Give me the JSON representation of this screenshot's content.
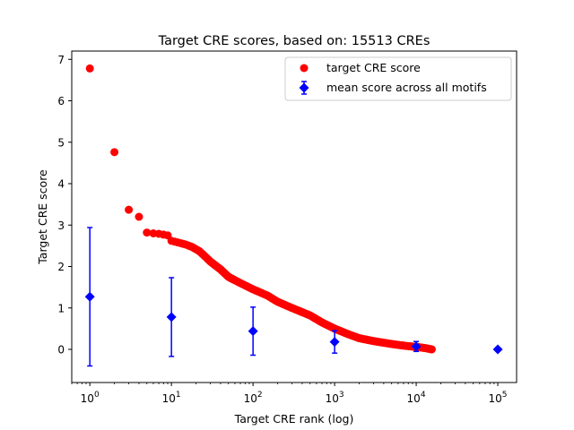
{
  "chart_data": {
    "type": "scatter",
    "title": "Target CRE scores, based on: 15513 CREs",
    "xlabel": "Target CRE rank (log)",
    "ylabel": "Target CRE score",
    "xscale": "log",
    "xlim": [
      0.6,
      170000
    ],
    "ylim": [
      -0.8,
      7.2
    ],
    "x_ticks": [
      {
        "value": 1,
        "base": "10",
        "exp": "0"
      },
      {
        "value": 10,
        "base": "10",
        "exp": "1"
      },
      {
        "value": 100,
        "base": "10",
        "exp": "2"
      },
      {
        "value": 1000,
        "base": "10",
        "exp": "3"
      },
      {
        "value": 10000,
        "base": "10",
        "exp": "4"
      },
      {
        "value": 100000,
        "base": "10",
        "exp": "5"
      }
    ],
    "y_ticks": [
      0,
      1,
      2,
      3,
      4,
      5,
      6,
      7
    ],
    "grid": false,
    "legend_position": "top-right",
    "legend": [
      {
        "label": "target CRE score",
        "marker": "circle",
        "color": "#ff0000"
      },
      {
        "label": "mean score across all motifs",
        "marker": "diamond",
        "color": "#0000ff"
      }
    ],
    "series": [
      {
        "name": "target CRE score",
        "color": "#ff0000",
        "marker": "circle",
        "curve": [
          [
            1,
            6.78
          ],
          [
            2,
            4.76
          ],
          [
            3,
            3.37
          ],
          [
            4,
            3.2
          ],
          [
            5,
            2.82
          ],
          [
            6,
            2.8
          ],
          [
            7,
            2.79
          ],
          [
            8,
            2.77
          ],
          [
            9,
            2.75
          ],
          [
            10,
            2.62
          ],
          [
            12,
            2.58
          ],
          [
            15,
            2.53
          ],
          [
            18,
            2.47
          ],
          [
            22,
            2.37
          ],
          [
            25,
            2.27
          ],
          [
            30,
            2.12
          ],
          [
            40,
            1.93
          ],
          [
            50,
            1.75
          ],
          [
            70,
            1.6
          ],
          [
            100,
            1.45
          ],
          [
            150,
            1.3
          ],
          [
            200,
            1.15
          ],
          [
            300,
            1.0
          ],
          [
            500,
            0.82
          ],
          [
            700,
            0.65
          ],
          [
            1000,
            0.5
          ],
          [
            1500,
            0.36
          ],
          [
            2000,
            0.27
          ],
          [
            3000,
            0.2
          ],
          [
            5000,
            0.13
          ],
          [
            7000,
            0.09
          ],
          [
            10000,
            0.06
          ],
          [
            13000,
            0.03
          ],
          [
            15513,
            0.0
          ]
        ]
      },
      {
        "name": "mean score across all motifs",
        "color": "#0000ff",
        "marker": "diamond",
        "points": [
          {
            "x": 1,
            "y": 1.27,
            "err": 1.67
          },
          {
            "x": 10,
            "y": 0.78,
            "err": 0.95
          },
          {
            "x": 100,
            "y": 0.44,
            "err": 0.58
          },
          {
            "x": 1000,
            "y": 0.18,
            "err": 0.27
          },
          {
            "x": 10000,
            "y": 0.07,
            "err": 0.12
          },
          {
            "x": 100000,
            "y": 0.0,
            "err": 0.0
          }
        ]
      }
    ]
  }
}
